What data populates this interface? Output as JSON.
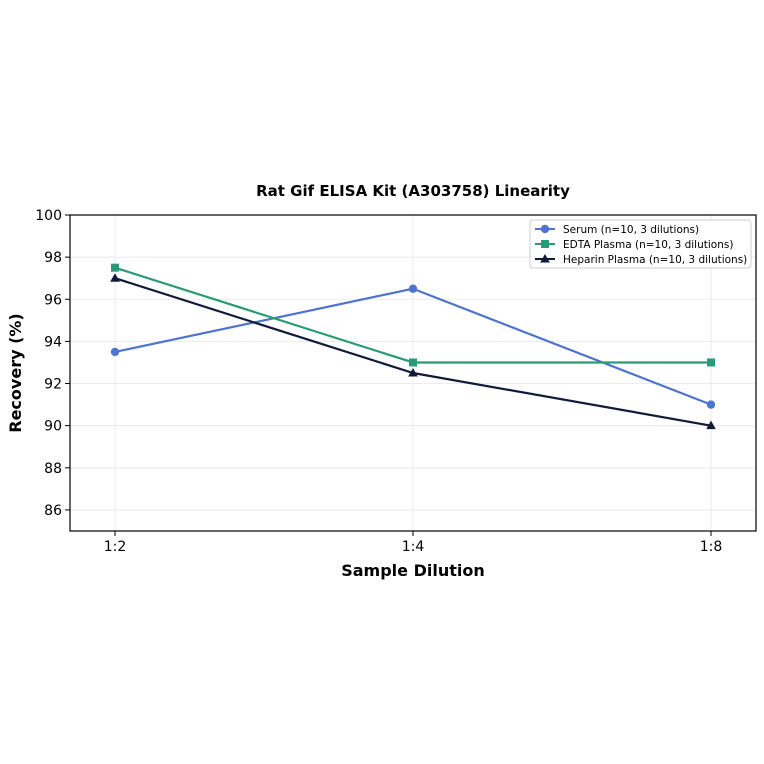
{
  "chart_data": {
    "type": "line",
    "title": "Rat Gif ELISA Kit (A303758) Linearity",
    "xlabel": "Sample Dilution",
    "ylabel": "Recovery (%)",
    "categories": [
      "1:2",
      "1:4",
      "1:8"
    ],
    "ylim": [
      85,
      100
    ],
    "yticks": [
      86,
      88,
      90,
      92,
      94,
      96,
      98,
      100
    ],
    "grid": true,
    "legend_position": "top-right",
    "series": [
      {
        "name": "Serum (n=10, 3 dilutions)",
        "values": [
          93.5,
          96.5,
          91.0
        ],
        "color": "#4f74d0",
        "marker": "circle"
      },
      {
        "name": "EDTA Plasma (n=10, 3 dilutions)",
        "values": [
          97.5,
          93.0,
          93.0
        ],
        "color": "#2a9a76",
        "marker": "square"
      },
      {
        "name": "Heparin Plasma (n=10, 3 dilutions)",
        "values": [
          97.0,
          92.5,
          90.0
        ],
        "color": "#111a3a",
        "marker": "triangle"
      }
    ]
  }
}
